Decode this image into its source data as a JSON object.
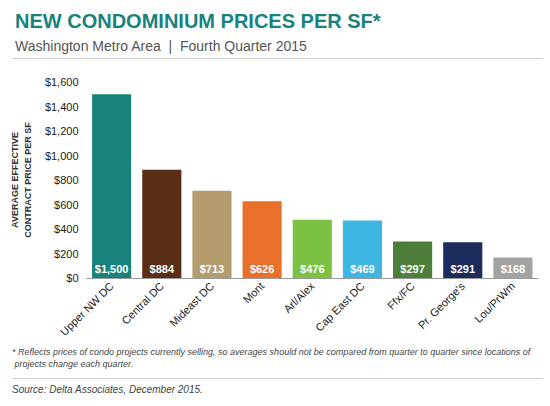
{
  "chart_data": {
    "type": "bar",
    "title": "NEW CONDOMINIUM PRICES PER SF*",
    "subtitle": "Washington Metro Area  |  Fourth Quarter 2015",
    "y_label": "AVERAGE EFFECTIVE\nCONTRACT PRICE PER SF",
    "categories": [
      "Upper NW DC",
      "Central DC",
      "Mideast DC",
      "Mont",
      "Arl/Alex",
      "Cap East DC",
      "Ffx/FC",
      "Pr. George's",
      "Lou/PrWm"
    ],
    "values": [
      1500,
      884,
      713,
      626,
      476,
      469,
      297,
      291,
      168
    ],
    "value_labels": [
      "$1,500",
      "$884",
      "$713",
      "$626",
      "$476",
      "$469",
      "$297",
      "$291",
      "$168"
    ],
    "colors": [
      "#18837d",
      "#5a2e16",
      "#b59c6c",
      "#e8702b",
      "#7cc242",
      "#3db7e2",
      "#4d7e3a",
      "#1b2b5c",
      "#a3a3a3"
    ],
    "data_labels": true,
    "ylim": [
      0,
      1600
    ],
    "yticks": [
      {
        "value": 0,
        "label": "$0"
      },
      {
        "value": 200,
        "label": "$200"
      },
      {
        "value": 400,
        "label": "$400"
      },
      {
        "value": 600,
        "label": "$600"
      },
      {
        "value": 800,
        "label": "$800"
      },
      {
        "value": 1000,
        "label": "$1,000"
      },
      {
        "value": 1200,
        "label": "$1,200"
      },
      {
        "value": 1400,
        "label": "$1,400"
      },
      {
        "value": 1600,
        "label": "$1,600"
      }
    ],
    "grid": false,
    "footnote": "* Reflects prices of condo projects currently selling, so averages should not be compared from quarter to quarter since locations of projects change each quarter.",
    "source": "Source: Delta Associates, December 2015."
  }
}
